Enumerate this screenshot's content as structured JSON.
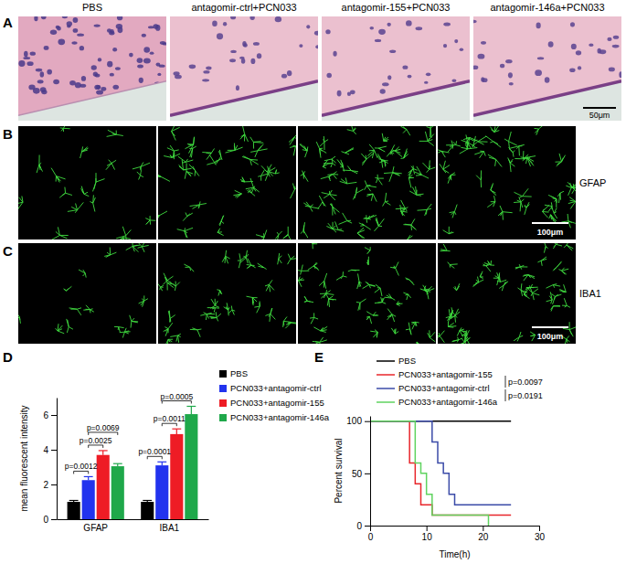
{
  "panel_labels": [
    "A",
    "B",
    "C",
    "D",
    "E"
  ],
  "histology": {
    "columns": [
      "PBS",
      "antagomir-ctrl+PCN033",
      "antagomir-155+PCN033",
      "antagomir-146a+PCN033"
    ],
    "he_scale_bar": "50μm",
    "if_rows": [
      "GFAP",
      "IBA1"
    ],
    "if_scale_bar": "100μm"
  },
  "chart_data": [
    {
      "type": "bar",
      "ylabel": "mean fluorescent intensity",
      "categories": [
        "GFAP",
        "IBA1"
      ],
      "series": [
        {
          "name": "PBS",
          "color": "#000000",
          "values": [
            1.0,
            1.0
          ],
          "errors": [
            0.08,
            0.08
          ]
        },
        {
          "name": "PCN033+antagomir-ctrl",
          "color": "#2233ee",
          "values": [
            2.25,
            3.1
          ],
          "errors": [
            0.2,
            0.2
          ]
        },
        {
          "name": "PCN033+antagomir-155",
          "color": "#ee1c25",
          "values": [
            3.7,
            4.9
          ],
          "errors": [
            0.25,
            0.3
          ]
        },
        {
          "name": "PCN033+antagomir-146a",
          "color": "#1fa84a",
          "values": [
            3.05,
            6.05
          ],
          "errors": [
            0.15,
            0.45
          ]
        }
      ],
      "ylim": [
        0,
        7
      ],
      "yticks": [
        0,
        2,
        4,
        6
      ],
      "legend": "right",
      "annotations": [
        {
          "text": "p=0.0012",
          "category": "GFAP",
          "between": [
            "PBS",
            "PCN033+antagomir-ctrl"
          ]
        },
        {
          "text": "p=0.0025",
          "category": "GFAP",
          "between": [
            "PCN033+antagomir-ctrl",
            "PCN033+antagomir-155"
          ]
        },
        {
          "text": "p=0.0069",
          "category": "GFAP",
          "between": [
            "PCN033+antagomir-ctrl",
            "PCN033+antagomir-146a"
          ]
        },
        {
          "text": "p=0.0001",
          "category": "IBA1",
          "between": [
            "PBS",
            "PCN033+antagomir-ctrl"
          ]
        },
        {
          "text": "p=0.0011",
          "category": "IBA1",
          "between": [
            "PCN033+antagomir-ctrl",
            "PCN033+antagomir-155"
          ]
        },
        {
          "text": "p=0.0005",
          "category": "IBA1",
          "between": [
            "PCN033+antagomir-ctrl",
            "PCN033+antagomir-146a"
          ]
        }
      ]
    },
    {
      "type": "line",
      "xlabel": "Time(h)",
      "ylabel": "Percent survival",
      "line_style": "step",
      "series": [
        {
          "name": "PBS",
          "color": "#000000",
          "x": [
            0,
            25
          ],
          "values": [
            100,
            100
          ]
        },
        {
          "name": "PCN033+antagomir-155",
          "color": "#e8262b",
          "x": [
            0,
            7,
            8,
            9,
            11,
            25
          ],
          "values": [
            100,
            60,
            40,
            20,
            10,
            10
          ]
        },
        {
          "name": "PCN033+antagomir-ctrl",
          "color": "#3b4ba8",
          "x": [
            0,
            11,
            12,
            13,
            14,
            15,
            25
          ],
          "values": [
            100,
            80,
            60,
            50,
            30,
            20,
            20
          ]
        },
        {
          "name": "PCN033+antagomir-146a",
          "color": "#5fd35f",
          "x": [
            0,
            8,
            9,
            10,
            11,
            21
          ],
          "values": [
            100,
            60,
            50,
            30,
            10,
            0
          ]
        }
      ],
      "xlim": [
        0,
        30
      ],
      "xticks": [
        0,
        10,
        20,
        30
      ],
      "ylim": [
        0,
        105
      ],
      "yticks": [
        0,
        50,
        100
      ],
      "legend": "top",
      "annotations": [
        {
          "text": "p=0.0097",
          "between": [
            "PCN033+antagomir-155",
            "PCN033+antagomir-ctrl"
          ]
        },
        {
          "text": "p=0.0191",
          "between": [
            "PCN033+antagomir-ctrl",
            "PCN033+antagomir-146a"
          ]
        }
      ]
    }
  ]
}
